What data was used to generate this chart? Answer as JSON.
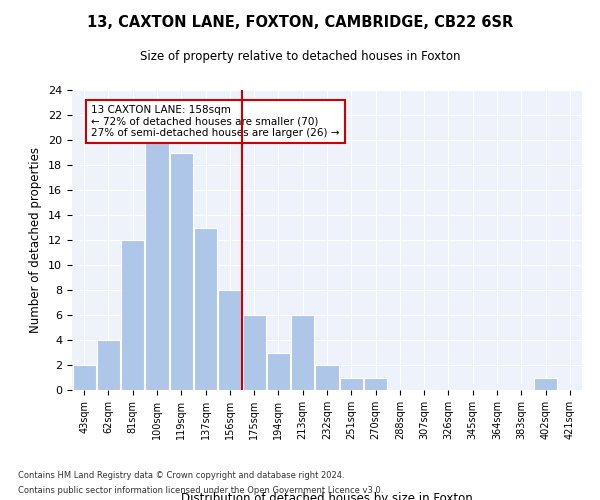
{
  "title": "13, CAXTON LANE, FOXTON, CAMBRIDGE, CB22 6SR",
  "subtitle": "Size of property relative to detached houses in Foxton",
  "xlabel": "Distribution of detached houses by size in Foxton",
  "ylabel": "Number of detached properties",
  "bin_labels": [
    "43sqm",
    "62sqm",
    "81sqm",
    "100sqm",
    "119sqm",
    "137sqm",
    "156sqm",
    "175sqm",
    "194sqm",
    "213sqm",
    "232sqm",
    "251sqm",
    "270sqm",
    "288sqm",
    "307sqm",
    "326sqm",
    "345sqm",
    "364sqm",
    "383sqm",
    "402sqm",
    "421sqm"
  ],
  "bar_values": [
    2,
    4,
    12,
    20,
    19,
    13,
    8,
    6,
    3,
    6,
    2,
    1,
    1,
    0,
    0,
    0,
    0,
    0,
    0,
    1,
    0
  ],
  "bar_color": "#aec6e8",
  "bar_edgecolor": "#ffffff",
  "vline_x": 6.5,
  "vline_color": "#cc0000",
  "annotation_text": "13 CAXTON LANE: 158sqm\n← 72% of detached houses are smaller (70)\n27% of semi-detached houses are larger (26) →",
  "annotation_box_edgecolor": "#cc0000",
  "annotation_box_facecolor": "#ffffff",
  "ylim": [
    0,
    24
  ],
  "yticks": [
    0,
    2,
    4,
    6,
    8,
    10,
    12,
    14,
    16,
    18,
    20,
    22,
    24
  ],
  "background_color": "#edf2fb",
  "footer_line1": "Contains HM Land Registry data © Crown copyright and database right 2024.",
  "footer_line2": "Contains public sector information licensed under the Open Government Licence v3.0."
}
